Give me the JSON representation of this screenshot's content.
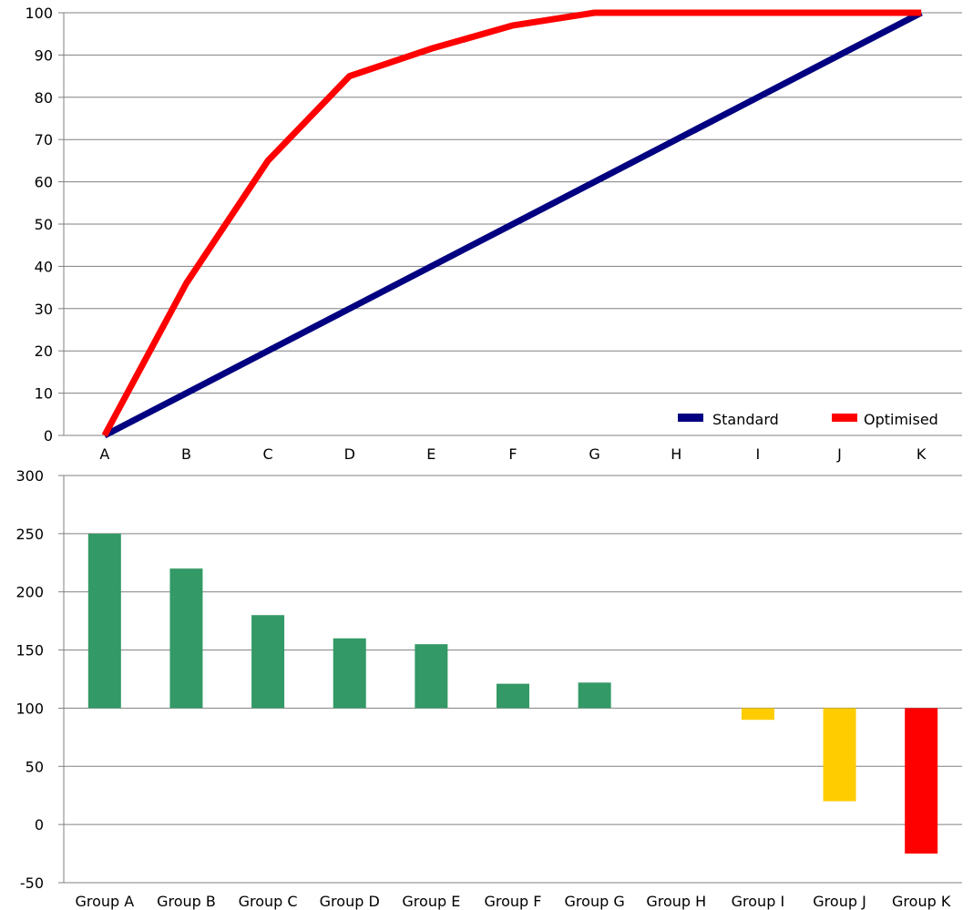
{
  "chart_data": [
    {
      "type": "line",
      "title": "",
      "xlabel": "",
      "ylabel": "",
      "categories": [
        "A",
        "B",
        "C",
        "D",
        "E",
        "F",
        "G",
        "H",
        "I",
        "J",
        "K"
      ],
      "yticks": [
        "0",
        "10",
        "20",
        "30",
        "40",
        "50",
        "60",
        "70",
        "80",
        "90",
        "100"
      ],
      "ylim": [
        0,
        100
      ],
      "grid": true,
      "legend": "bottom-right",
      "series": [
        {
          "name": "Standard",
          "color": "#000080",
          "values": [
            0,
            10,
            20,
            30,
            40,
            50,
            60,
            70,
            80,
            90,
            100
          ]
        },
        {
          "name": "Optimised",
          "color": "#ff0000",
          "values": [
            0,
            36,
            65,
            85,
            91.5,
            97,
            100,
            100,
            100,
            100,
            100
          ]
        }
      ]
    },
    {
      "type": "bar",
      "title": "",
      "xlabel": "",
      "ylabel": "",
      "categories": [
        "Group A",
        "Group B",
        "Group C",
        "Group D",
        "Group E",
        "Group F",
        "Group G",
        "Group H",
        "Group I",
        "Group J",
        "Group K"
      ],
      "values": [
        250,
        220,
        180,
        160,
        155,
        121,
        122,
        100,
        90,
        20,
        -25
      ],
      "baseline": 100,
      "bar_colors": [
        "#339966",
        "#339966",
        "#339966",
        "#339966",
        "#339966",
        "#339966",
        "#339966",
        "#339966",
        "#ffcc00",
        "#ffcc00",
        "#ff0000"
      ],
      "yticks": [
        "-50",
        "0",
        "50",
        "100",
        "150",
        "200",
        "250",
        "300"
      ],
      "ylim": [
        -50,
        300
      ],
      "grid": true
    }
  ]
}
